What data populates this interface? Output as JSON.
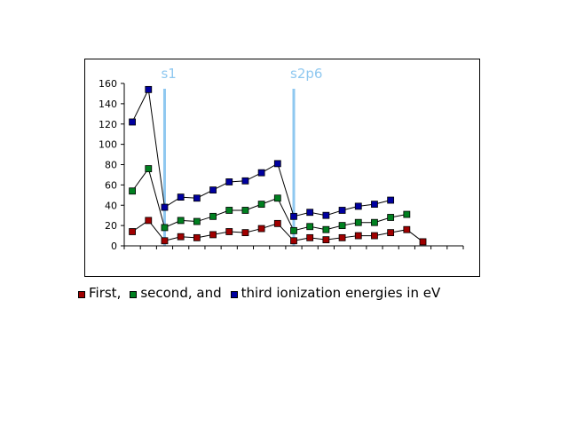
{
  "chart_data": {
    "type": "line",
    "x": [
      1,
      2,
      3,
      4,
      5,
      6,
      7,
      8,
      9,
      10,
      11,
      12,
      13,
      14,
      15,
      16,
      17,
      18,
      19,
      20,
      21
    ],
    "y_ticks": [
      "0",
      "20",
      "40",
      "60",
      "80",
      "100",
      "120",
      "140",
      "160"
    ],
    "ylim": [
      0,
      160
    ],
    "xlim": [
      0.5,
      21.5
    ],
    "grid": false,
    "legend_position": "bottom",
    "marker_lines": [
      {
        "label": "s1",
        "x": 3
      },
      {
        "label": "s2p6",
        "x": 11
      }
    ],
    "series": [
      {
        "name": "third ionization energies in eV",
        "color": "#0000a0",
        "values": [
          122,
          154,
          38,
          48,
          47,
          55,
          63,
          64,
          72,
          81,
          29,
          33,
          30,
          35,
          39,
          41,
          45,
          null,
          null,
          null,
          null
        ]
      },
      {
        "name": "second, and",
        "color": "#008020",
        "values": [
          54,
          76,
          18,
          25,
          24,
          29,
          35,
          35,
          41,
          47,
          15,
          19,
          16,
          20,
          23,
          23,
          28,
          31,
          null,
          null,
          null
        ]
      },
      {
        "name": "First,",
        "color": "#a00000",
        "values": [
          14,
          25,
          5,
          9,
          8,
          11,
          14,
          13,
          17,
          22,
          5,
          8,
          6,
          8,
          10,
          10,
          13,
          16,
          4,
          null,
          null
        ]
      }
    ]
  },
  "legend": {
    "first_label": "First,",
    "second_label": "second, and",
    "third_label": "third ionization energies in eV"
  }
}
